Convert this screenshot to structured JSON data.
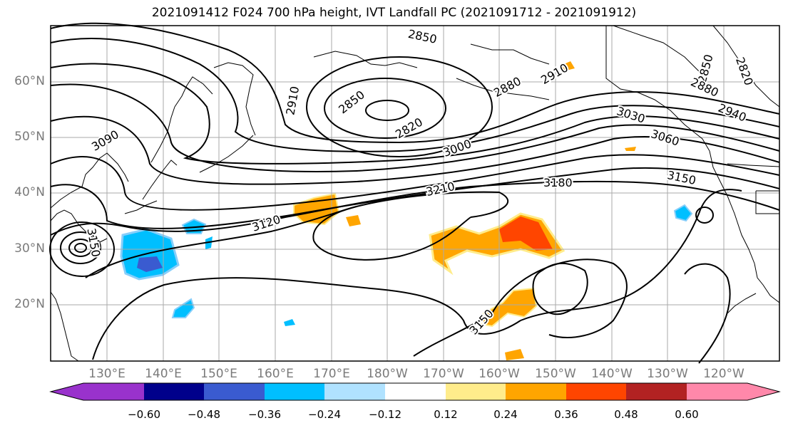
{
  "title": "2021091412 F024 700 hPa height, IVT Landfall PC (2021091712 - 2021091912)",
  "lat_labels": [
    "60°N",
    "50°N",
    "40°N",
    "30°N",
    "20°N"
  ],
  "lon_labels": [
    "130°E",
    "140°E",
    "150°E",
    "160°E",
    "170°E",
    "180°W",
    "170°W",
    "160°W",
    "150°W",
    "140°W",
    "130°W",
    "120°W"
  ],
  "contour_labels": [
    "2850",
    "2850",
    "2880",
    "2910",
    "2820",
    "2850",
    "2880",
    "2820",
    "2940",
    "3030",
    "3060",
    "3000",
    "3090",
    "3210",
    "3180",
    "3150",
    "3120",
    "3150",
    "3150",
    "2910"
  ],
  "colorbar": {
    "ticks": [
      "−0.60",
      "−0.48",
      "−0.36",
      "−0.24",
      "−0.12",
      "0.12",
      "0.24",
      "0.36",
      "0.48",
      "0.60"
    ],
    "colors": [
      "#9932cc",
      "#00008b",
      "#3a5bd0",
      "#00bfff",
      "#b0e2ff",
      "#ffffff",
      "#ffec8b",
      "#ffa500",
      "#ff4500",
      "#b22222",
      "#ff88aa"
    ]
  }
}
